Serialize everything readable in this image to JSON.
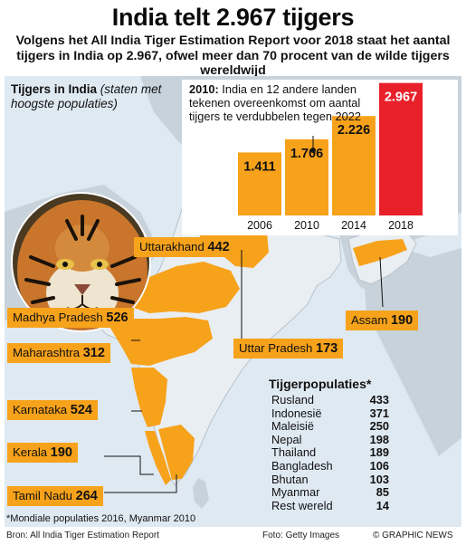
{
  "title": "India telt 2.967 tijgers",
  "subtitle": "Volgens het All India Tiger Estimation Report voor 2018 staat het aantal tijgers in India op 2.967, ofwel meer dan 70 procent van de wilde tijgers wereldwijd",
  "map_heading": {
    "bold": "Tijgers in India",
    "italic": "(staten met hoogste populaties)"
  },
  "chart_note": {
    "year": "2010:",
    "text": "India en 12 andere landen tekenen overeenkomst om aantal tijgers te verdubbelen tegen 2022"
  },
  "colors": {
    "bar": "#f7a21b",
    "highlight": "#e8202a",
    "map_land": "#c8d2da",
    "india": "#f7a21b",
    "sea": "#dfe9f2"
  },
  "chart_data": [
    {
      "type": "bar",
      "categories": [
        "2006",
        "2010",
        "2014",
        "2018"
      ],
      "values": [
        1411,
        1706,
        2226,
        2967
      ],
      "value_labels": [
        "1.411",
        "1.706",
        "2.226",
        "2.967"
      ],
      "highlight_index": 3,
      "ylim": [
        0,
        3000
      ]
    },
    {
      "type": "table",
      "title": "Tijgerpopulaties*",
      "rows": [
        {
          "country": "Rusland",
          "value": 433
        },
        {
          "country": "Indonesië",
          "value": 371
        },
        {
          "country": "Maleisië",
          "value": 250
        },
        {
          "country": "Nepal",
          "value": 198
        },
        {
          "country": "Thailand",
          "value": 189
        },
        {
          "country": "Bangladesh",
          "value": 106
        },
        {
          "country": "Bhutan",
          "value": 103
        },
        {
          "country": "Myanmar",
          "value": 85
        },
        {
          "country": "Rest wereld",
          "value": 14
        }
      ]
    }
  ],
  "states": [
    {
      "name": "Uttarakhand",
      "value": "442"
    },
    {
      "name": "Madhya Pradesh",
      "value": "526"
    },
    {
      "name": "Maharashtra",
      "value": "312"
    },
    {
      "name": "Uttar Pradesh",
      "value": "173"
    },
    {
      "name": "Assam",
      "value": "190"
    },
    {
      "name": "Karnataka",
      "value": "524"
    },
    {
      "name": "Kerala",
      "value": "190"
    },
    {
      "name": "Tamil Nadu",
      "value": "264"
    }
  ],
  "footer": {
    "footnote": "*Mondiale populaties 2016, Myanmar 2010",
    "source": "Bron: All India Tiger Estimation Report",
    "credit": "Foto: Getty Images",
    "copyright": "© GRAPHIC NEWS"
  }
}
